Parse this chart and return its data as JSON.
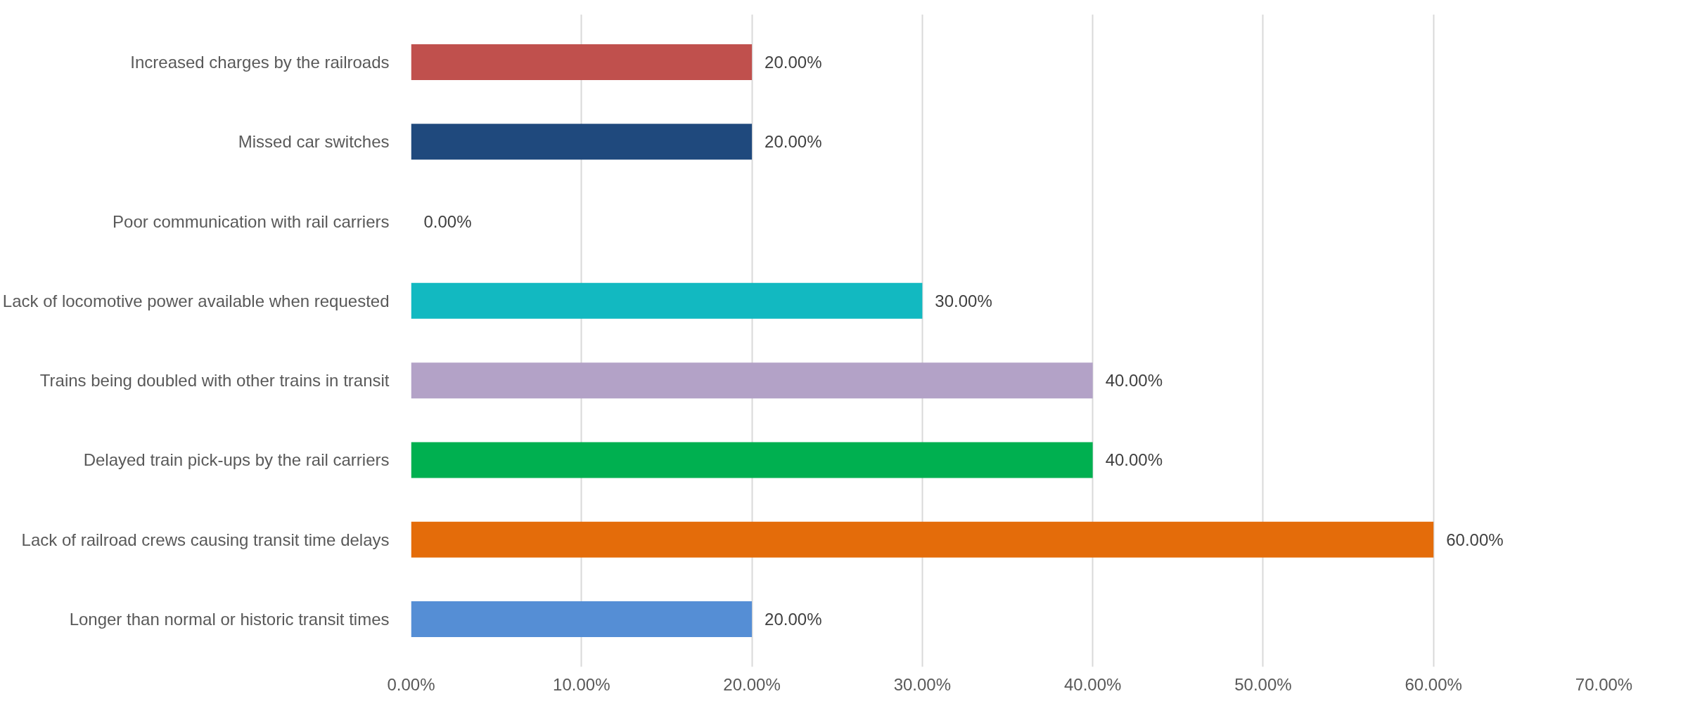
{
  "chart_data": {
    "type": "bar",
    "orientation": "horizontal",
    "categories": [
      "Increased charges by the railroads",
      "Missed car switches",
      "Poor communication with rail carriers",
      "Lack of locomotive power available when requested",
      "Trains being doubled with other trains in transit",
      "Delayed train pick-ups by the rail carriers",
      "Lack of railroad crews causing transit time delays",
      "Longer than normal or historic transit times"
    ],
    "values": [
      20,
      20,
      0,
      30,
      40,
      40,
      60,
      20
    ],
    "colors": [
      "#c0504d",
      "#1f497d",
      "#4bacc6",
      "#12b9c1",
      "#b3a2c7",
      "#00b050",
      "#e46c0a",
      "#558ed5"
    ],
    "value_labels": [
      "20.00%",
      "20.00%",
      "0.00%",
      "30.00%",
      "40.00%",
      "40.00%",
      "60.00%",
      "20.00%"
    ],
    "xlim": [
      0,
      70
    ],
    "xticks": [
      {
        "value": 0,
        "label": "0.00%"
      },
      {
        "value": 10,
        "label": "10.00%"
      },
      {
        "value": 20,
        "label": "20.00%"
      },
      {
        "value": 30,
        "label": "30.00%"
      },
      {
        "value": 40,
        "label": "40.00%"
      },
      {
        "value": 50,
        "label": "50.00%"
      },
      {
        "value": 60,
        "label": "60.00%"
      },
      {
        "value": 70,
        "label": "70.00%"
      }
    ],
    "grid": "x"
  }
}
